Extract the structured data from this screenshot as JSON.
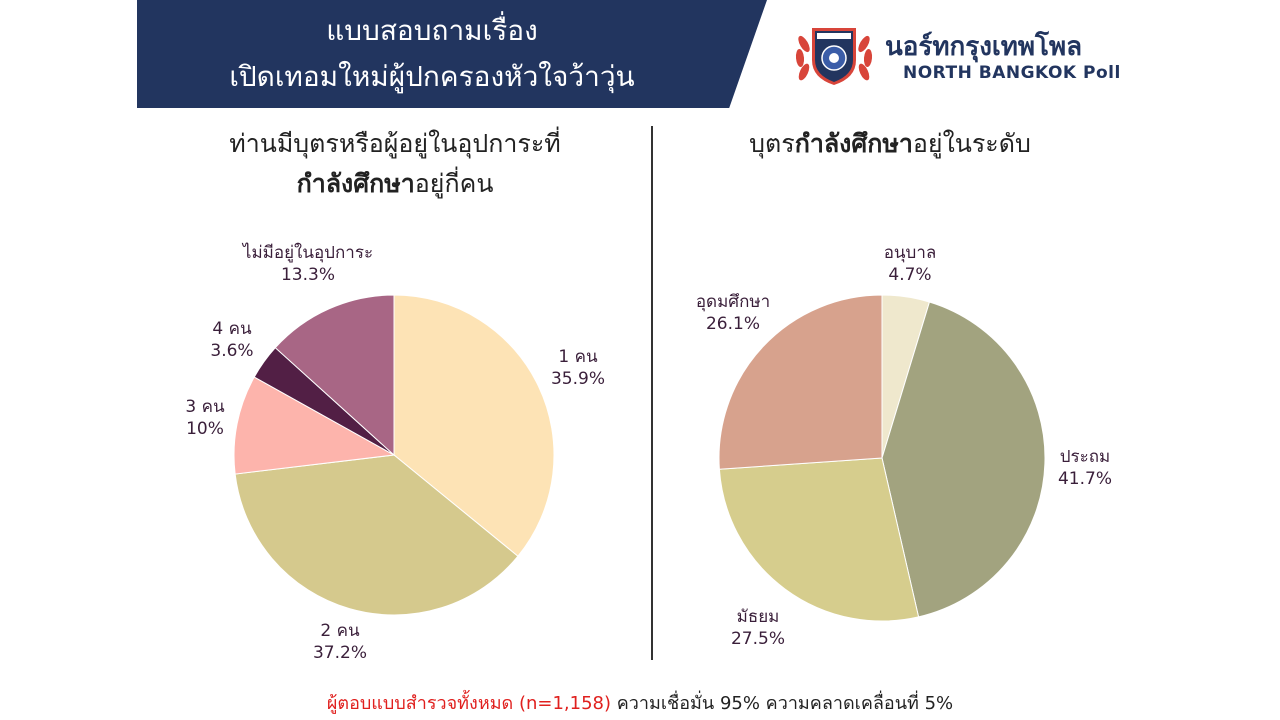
{
  "header": {
    "title_line1": "แบบสอบถามเรื่อง",
    "title_line2": "เปิดเทอมใหม่ผู้ปกครองหัวใจว้าวุ่น"
  },
  "brand": {
    "name_th": "นอร์ทกรุงเทพโพล",
    "name_en": "NORTH BANGKOK Poll"
  },
  "chart_data": [
    {
      "type": "pie",
      "title_part1": "ท่านมีบุตรหรือผู้อยู่ในอุปการะที่",
      "title_bold": "กำลังศึกษา",
      "title_part2": "อยู่กี่คน",
      "slices": [
        {
          "label": "1 คน",
          "value": 35.9,
          "display": "35.9%",
          "color": "#fde3b5"
        },
        {
          "label": "2 คน",
          "value": 37.2,
          "display": "37.2%",
          "color": "#d5c98d"
        },
        {
          "label": "3 คน",
          "value": 10,
          "display": "10%",
          "color": "#fdb4ac"
        },
        {
          "label": "4 คน",
          "value": 3.6,
          "display": "3.6%",
          "color": "#521f45"
        },
        {
          "label": "ไม่มีอยู่ในอุปการะ",
          "value": 13.3,
          "display": "13.3%",
          "color": "#a86685"
        }
      ]
    },
    {
      "type": "pie",
      "title_part1": "บุตร",
      "title_bold": "กำลังศึกษา",
      "title_part2": "อยู่ในระดับ",
      "slices": [
        {
          "label": "อนุบาล",
          "value": 4.7,
          "display": "4.7%",
          "color": "#efe8cd"
        },
        {
          "label": "ประถม",
          "value": 41.7,
          "display": "41.7%",
          "color": "#a2a37f"
        },
        {
          "label": "มัธยม",
          "value": 27.5,
          "display": "27.5%",
          "color": "#d6cd8d"
        },
        {
          "label": "อุดมศึกษา",
          "value": 26.1,
          "display": "26.1%",
          "color": "#d7a28d"
        }
      ]
    }
  ],
  "footer": {
    "red_text": "ผู้ตอบแบบสำรวจทั้งหมด (n=1,158)",
    "rest_text": " ความเชื่อมั่น 95% ความคลาดเคลื่อนที่ 5%"
  }
}
